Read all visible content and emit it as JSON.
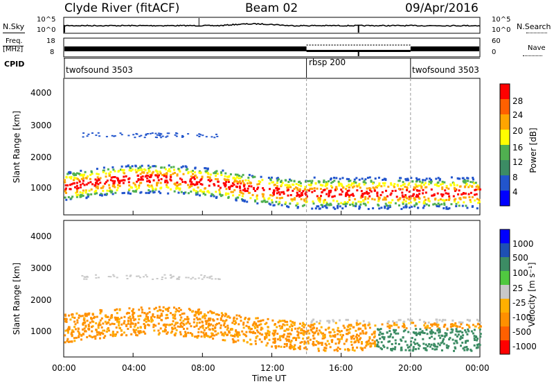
{
  "header": {
    "station": "Clyde River (fitACF)",
    "beam": "Beam 02",
    "date": "09/Apr/2016"
  },
  "nsky_panel": {
    "left_label": "N.Sky",
    "left_ticks": [
      "10^5",
      "10^0"
    ],
    "right_ticks": [
      "10^5",
      "10^0"
    ],
    "right_label": "N.Search"
  },
  "freq_panel": {
    "left_label_1": "Freq.",
    "left_label_2": "[MHz]",
    "left_ticks": [
      "18",
      "8"
    ],
    "right_ticks": [
      "60",
      "0"
    ],
    "right_label": "Nave"
  },
  "cpid_panel": {
    "label": "CPID",
    "segments": [
      {
        "name": "twofsound 3503",
        "start_h": 0,
        "end_h": 14
      },
      {
        "name": "rbsp 200",
        "start_h": 14,
        "end_h": 20
      },
      {
        "name": "twofsound 3503",
        "start_h": 20,
        "end_h": 24
      }
    ]
  },
  "chart_data": [
    {
      "type": "heatmap",
      "name": "power",
      "ylabel": "Slant Range [km]",
      "xlim": [
        0,
        24
      ],
      "ylim": [
        180,
        4500
      ],
      "yticks": [
        "1000",
        "2000",
        "3000",
        "4000"
      ],
      "colorbar_label": "Power [dB]",
      "colorbar_ticks": [
        "28",
        "24",
        "20",
        "16",
        "12",
        "8",
        "4"
      ],
      "colorbar_colors": [
        "#0000ff",
        "#2255cc",
        "#3c8c64",
        "#50b050",
        "#ffff00",
        "#ffa500",
        "#ff6000",
        "#ff0000"
      ]
    },
    {
      "type": "heatmap",
      "name": "velocity",
      "ylabel": "Slant Range [km]",
      "xlim": [
        0,
        24
      ],
      "ylim": [
        180,
        4500
      ],
      "yticks": [
        "1000",
        "2000",
        "3000",
        "4000"
      ],
      "colorbar_label": "Velocity [m s⁻¹]",
      "colorbar_ticks": [
        "1000",
        "500",
        "100",
        "25",
        "-25",
        "-100",
        "-500",
        "-1000"
      ],
      "colorbar_colors": [
        "#ff0000",
        "#ff6000",
        "#ff9000",
        "#ffb000",
        "#c8c8c8",
        "#50c840",
        "#3c8c64",
        "#1e50b4",
        "#0000ff"
      ]
    }
  ],
  "x_axis": {
    "ticks": [
      "00:00",
      "04:00",
      "08:00",
      "12:00",
      "16:00",
      "20:00",
      "00:00"
    ],
    "label": "Time UT"
  }
}
